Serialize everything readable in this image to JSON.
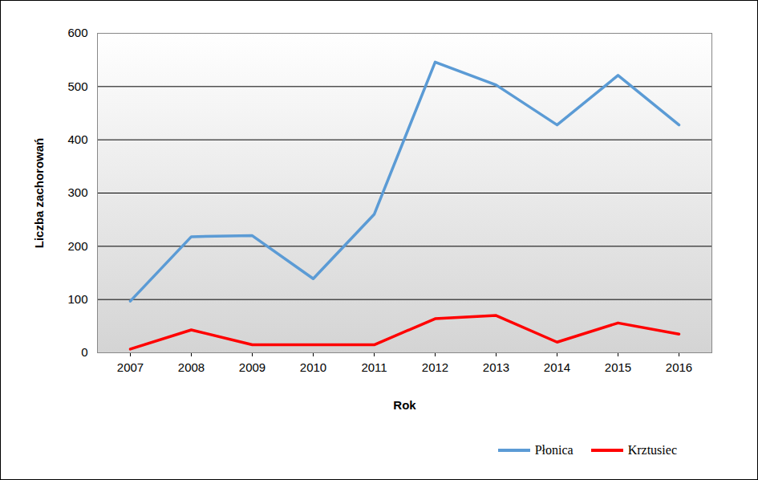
{
  "chart_data": {
    "type": "line",
    "x_label": "Rok",
    "y_label": "Liczba zachorowań",
    "categories": [
      "2007",
      "2008",
      "2009",
      "2010",
      "2011",
      "2012",
      "2013",
      "2014",
      "2015",
      "2016"
    ],
    "series": [
      {
        "name": "Płonica",
        "color": "#5b9bd5",
        "values": [
          97,
          218,
          220,
          139,
          260,
          546,
          503,
          428,
          521,
          428
        ]
      },
      {
        "name": "Krztusiec",
        "color": "#ff0000",
        "values": [
          7,
          43,
          15,
          15,
          15,
          64,
          70,
          20,
          56,
          35
        ]
      }
    ],
    "ylim": [
      0,
      600
    ],
    "yticks": [
      0,
      100,
      200,
      300,
      400,
      500,
      600
    ],
    "grid": true,
    "legend": "bottom"
  }
}
